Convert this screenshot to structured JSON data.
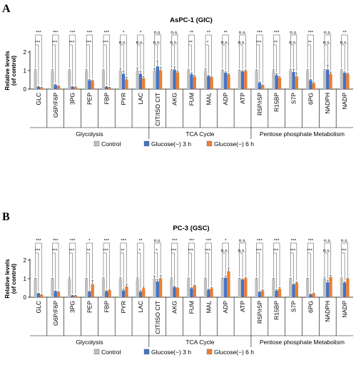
{
  "colors": {
    "control": "#bfbfbf",
    "glu3": "#4472c4",
    "glu6": "#ed7d31"
  },
  "legend": [
    "Control",
    "Glucose(−) 3 h",
    "Glucose(−) 6 h"
  ],
  "chart_data": [
    {
      "type": "bar",
      "panel": "A",
      "title": "AsPC-1 (GIC)",
      "ylabel": "Relative levels\n(of control)",
      "ylim": [
        0,
        2
      ],
      "yticks": [
        "0",
        "1",
        "2"
      ],
      "categories": [
        "GLC",
        "G6P/F6P",
        "3PG",
        "PEP",
        "FBP",
        "PYR",
        "LAC",
        "CIT/ISO CIT",
        "AKG",
        "FUM",
        "MAL",
        "ADP",
        "ATP",
        "R5P/r5P",
        "R15BP",
        "S7P",
        "6PG",
        "NADPH",
        "NADP"
      ],
      "series": [
        {
          "name": "Control",
          "values": [
            1,
            1,
            1,
            1,
            1,
            1,
            1,
            1,
            1,
            1,
            1,
            1,
            1,
            1,
            1,
            1,
            1,
            1,
            1
          ],
          "errors": [
            0.05,
            0.05,
            0.05,
            0.05,
            0.05,
            0.12,
            0.15,
            0.1,
            0.06,
            0.05,
            0.1,
            0.03,
            0.03,
            0.04,
            0.05,
            0.08,
            0.05,
            0.06,
            0.05
          ]
        },
        {
          "name": "Glucose(−) 3 h",
          "values": [
            0.12,
            0.22,
            0.12,
            0.48,
            0.12,
            0.82,
            0.82,
            1.22,
            1.05,
            0.8,
            0.7,
            0.88,
            0.95,
            0.35,
            0.75,
            0.92,
            0.48,
            1.05,
            0.88
          ],
          "errors": [
            0.02,
            0.03,
            0.02,
            0.04,
            0.02,
            0.15,
            0.12,
            0.3,
            0.15,
            0.08,
            0.05,
            0.05,
            0.05,
            0.05,
            0.08,
            0.15,
            0.05,
            0.25,
            0.05
          ]
        },
        {
          "name": "Glucose(−) 6 h",
          "values": [
            0.08,
            0.16,
            0.1,
            0.44,
            0.08,
            0.52,
            0.58,
            1.02,
            0.9,
            0.68,
            0.64,
            0.78,
            0.98,
            0.2,
            0.62,
            0.68,
            0.32,
            0.82,
            0.82
          ],
          "errors": [
            0.02,
            0.03,
            0.02,
            0.04,
            0.02,
            0.12,
            0.1,
            0.15,
            0.08,
            0.06,
            0.05,
            0.05,
            0.05,
            0.03,
            0.06,
            0.2,
            0.04,
            0.1,
            0.05
          ]
        }
      ],
      "sig_top": [
        "***",
        "***",
        "***",
        "***",
        "***",
        "*",
        "*",
        "n.s.",
        "n.s.",
        "**",
        "**",
        "**",
        "n.s.",
        "***",
        "***",
        "n.s.",
        "***",
        "n.s.",
        "**"
      ],
      "sig_bottom": [
        "***",
        "***",
        "***",
        "***",
        "***",
        "n.s.",
        "n.s.",
        "n.s.",
        "n.s.",
        "**",
        "*",
        "n.s.",
        "n.s.",
        "***",
        "**",
        "n.s.",
        "**",
        "n.s.",
        "n.s."
      ],
      "groups": [
        "Glycolysis",
        "TCA Cycle",
        "Pentose phosphate Metabolism"
      ]
    },
    {
      "type": "bar",
      "panel": "B",
      "title": "PC-3 (GSC)",
      "ylabel": "Relative levels\n(of control)",
      "ylim": [
        0,
        2
      ],
      "yticks": [
        "0",
        "1",
        "2"
      ],
      "categories": [
        "GLC",
        "G6P/F6P",
        "3PG",
        "PEP",
        "FBP",
        "PYR",
        "LAC",
        "CIT/ISO CIT",
        "AKG",
        "FUM",
        "MAL",
        "ADP",
        "ATP",
        "R5P/r5P",
        "R15BP",
        "S7P",
        "6PG",
        "NADPH",
        "NADP"
      ],
      "series": [
        {
          "name": "Control",
          "values": [
            1,
            1,
            1,
            1,
            1,
            1,
            1,
            1,
            1,
            1,
            1,
            1,
            1,
            1,
            1,
            1,
            1,
            1,
            1
          ],
          "errors": [
            0.03,
            0.03,
            0.08,
            0.03,
            0.05,
            0.05,
            0.08,
            0.15,
            0.05,
            0.04,
            0.04,
            0.04,
            0.03,
            0.03,
            0.03,
            0.03,
            0.03,
            0.08,
            0.05
          ]
        },
        {
          "name": "Glucose(−) 3 h",
          "values": [
            0.2,
            0.32,
            0.08,
            0.3,
            0.32,
            0.36,
            0.3,
            0.85,
            0.55,
            0.48,
            0.4,
            1.05,
            0.95,
            0.28,
            0.35,
            0.68,
            0.15,
            0.8,
            0.78
          ],
          "errors": [
            0.02,
            0.03,
            0.02,
            0.04,
            0.04,
            0.08,
            0.06,
            0.1,
            0.04,
            0.04,
            0.04,
            0.1,
            0.05,
            0.04,
            0.06,
            0.04,
            0.02,
            0.12,
            0.05
          ]
        },
        {
          "name": "Glucose(−) 6 h",
          "values": [
            0.12,
            0.28,
            0.08,
            0.7,
            0.38,
            0.58,
            0.48,
            1.02,
            0.5,
            0.62,
            0.48,
            1.4,
            1.02,
            0.36,
            0.45,
            0.78,
            0.2,
            1.08,
            1.0
          ],
          "errors": [
            0.02,
            0.03,
            0.02,
            0.2,
            0.05,
            0.12,
            0.1,
            0.15,
            0.04,
            0.04,
            0.04,
            0.18,
            0.05,
            0.04,
            0.08,
            0.05,
            0.03,
            0.1,
            0.04
          ]
        }
      ],
      "sig_top": [
        "***",
        "***",
        "***",
        "*",
        "***",
        "***",
        "**",
        "n.s.",
        "***",
        "***",
        "***",
        "*",
        "n.s.",
        "***",
        "***",
        "***",
        "***",
        "n.s.",
        "n.s."
      ],
      "sig_bottom": [
        "***",
        "***",
        "***",
        "**",
        "***",
        "**",
        "*",
        "*",
        "***",
        "***",
        "***",
        "n.s.",
        "n.s.",
        "***",
        "***",
        "***",
        "***",
        "n.s.",
        "***"
      ],
      "groups": [
        "Glycolysis",
        "TCA Cycle",
        "Pentose phosphate Metabolism"
      ]
    }
  ]
}
